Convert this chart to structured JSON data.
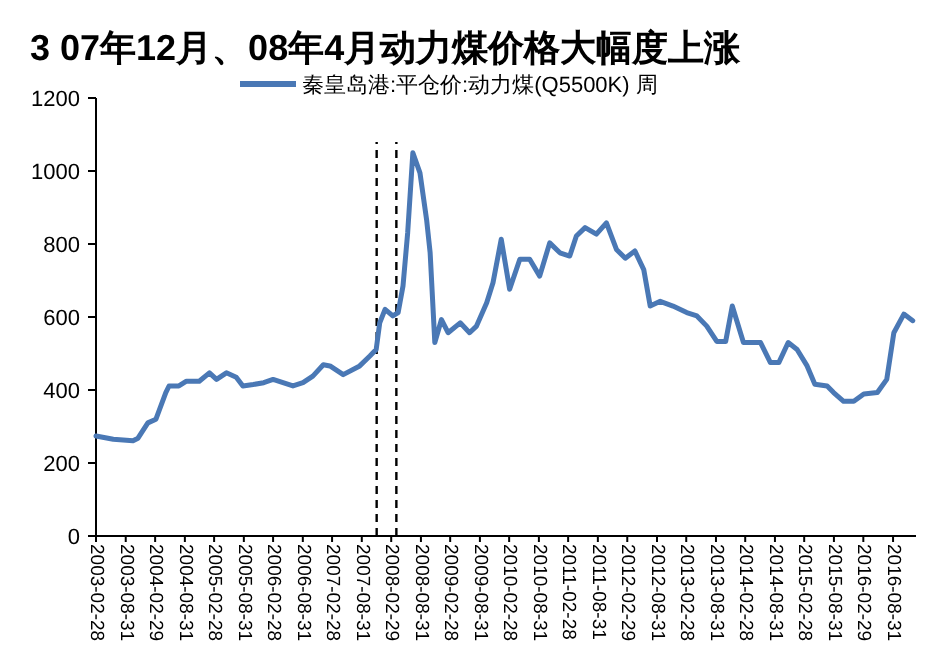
{
  "chart_data": {
    "type": "line",
    "title": "3 07年12月、08年4月动力煤价格大幅度上涨",
    "legend": "top",
    "grid": false,
    "marker": "none",
    "line_style": "solid",
    "xlim": [
      "2003-02-28",
      "2017-01-20"
    ],
    "ylim": [
      0,
      1200
    ],
    "yticks": [
      0,
      200,
      400,
      600,
      800,
      1000,
      1200
    ],
    "xticks": [
      "2003-02-28",
      "2003-08-31",
      "2004-02-29",
      "2004-08-31",
      "2005-02-28",
      "2005-08-31",
      "2006-02-28",
      "2006-08-31",
      "2007-02-28",
      "2007-08-31",
      "2008-02-29",
      "2008-08-31",
      "2009-02-28",
      "2009-08-31",
      "2010-02-28",
      "2010-08-31",
      "2011-02-28",
      "2011-08-31",
      "2012-02-29",
      "2012-08-31",
      "2013-02-28",
      "2013-08-31",
      "2014-02-28",
      "2014-08-31",
      "2015-02-28",
      "2015-08-31",
      "2016-02-29",
      "2016-08-31"
    ],
    "ref_lines": [
      {
        "axis": "x",
        "value": "2007-12-01",
        "color": "#000000",
        "line_style": "dashed"
      },
      {
        "axis": "x",
        "value": "2008-04-01",
        "color": "#000000",
        "line_style": "dashed"
      }
    ],
    "series": [
      {
        "name": "秦皇岛港:平仓价:动力煤(Q5500K) 周",
        "color": "#4a78b5",
        "x": [
          "2003-02-28",
          "2003-06-15",
          "2003-10-15",
          "2003-11-15",
          "2004-01-15",
          "2004-03-05",
          "2004-05-05",
          "2004-05-25",
          "2004-07-25",
          "2004-09-10",
          "2004-11-28",
          "2005-01-30",
          "2005-03-15",
          "2005-05-15",
          "2005-07-15",
          "2005-08-25",
          "2005-10-28",
          "2006-01-01",
          "2006-02-28",
          "2006-07-01",
          "2006-09-01",
          "2006-11-01",
          "2007-01-05",
          "2007-02-15",
          "2007-05-08",
          "2007-08-18",
          "2007-10-20",
          "2007-11-28",
          "2007-12-20",
          "2008-01-22",
          "2008-03-10",
          "2008-04-12",
          "2008-05-12",
          "2008-06-10",
          "2008-07-12",
          "2008-08-25",
          "2008-10-05",
          "2008-10-27",
          "2008-11-25",
          "2009-01-05",
          "2009-02-15",
          "2009-05-01",
          "2009-06-28",
          "2009-08-10",
          "2009-10-12",
          "2009-11-20",
          "2010-01-10",
          "2010-03-03",
          "2010-05-05",
          "2010-07-05",
          "2010-09-05",
          "2010-11-06",
          "2011-01-08",
          "2011-03-10",
          "2011-04-20",
          "2011-06-13",
          "2011-08-22",
          "2011-10-23",
          "2011-12-24",
          "2012-02-17",
          "2012-04-16",
          "2012-06-10",
          "2012-07-20",
          "2012-09-20",
          "2012-12-08",
          "2013-03-03",
          "2013-05-05",
          "2013-07-05",
          "2013-09-05",
          "2013-10-30",
          "2013-12-10",
          "2014-02-17",
          "2014-06-03",
          "2014-08-03",
          "2014-09-24",
          "2014-11-21",
          "2015-01-15",
          "2015-03-18",
          "2015-05-05",
          "2015-07-20",
          "2015-08-29",
          "2015-10-30",
          "2016-01-01",
          "2016-03-03",
          "2016-05-26",
          "2016-07-23",
          "2016-09-05",
          "2016-11-06",
          "2016-12-31"
        ],
        "values": [
          274,
          265,
          261,
          268,
          310,
          320,
          393,
          411,
          411,
          424,
          424,
          447,
          429,
          447,
          435,
          411,
          415,
          420,
          429,
          411,
          420,
          438,
          469,
          466,
          442,
          466,
          493,
          511,
          584,
          621,
          603,
          612,
          685,
          831,
          1050,
          995,
          867,
          776,
          530,
          593,
          557,
          584,
          557,
          575,
          639,
          694,
          813,
          676,
          758,
          758,
          712,
          803,
          776,
          767,
          822,
          845,
          827,
          858,
          785,
          761,
          781,
          730,
          630,
          643,
          630,
          612,
          603,
          575,
          533,
          533,
          630,
          530,
          530,
          475,
          475,
          530,
          511,
          466,
          416,
          411,
          393,
          369,
          369,
          389,
          393,
          429,
          557,
          608,
          590
        ]
      }
    ]
  }
}
